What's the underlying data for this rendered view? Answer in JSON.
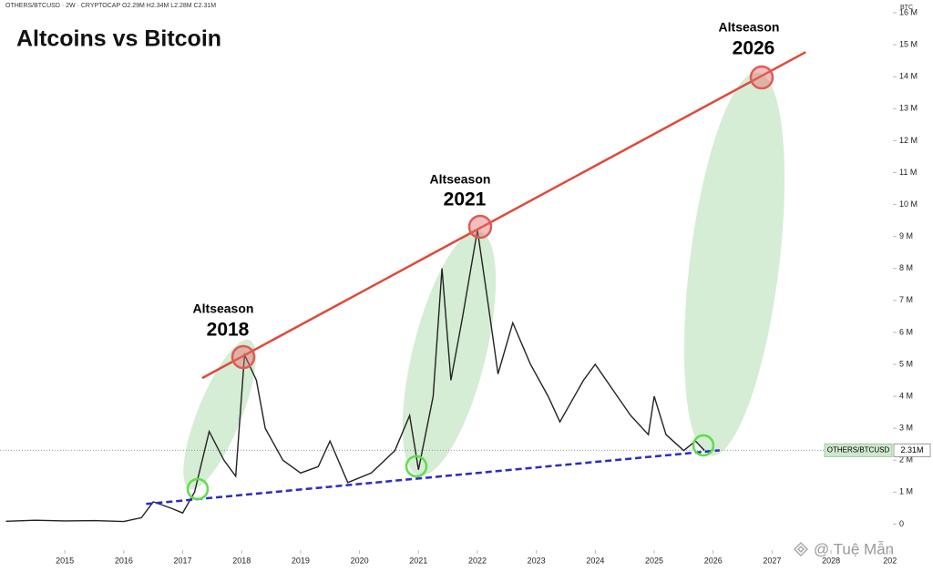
{
  "chart_data": {
    "type": "line",
    "title": "Altcoins vs Bitcoin",
    "header": "OTHERS/BTCUSD · 2W · CRYPTOCAP  O2.29M  H2.34M  L2.28M  C2.31M",
    "y_unit": "BTC",
    "price_label": {
      "name": "OTHERS/BTCUSD",
      "value": 2310000,
      "label": "2.31M"
    },
    "watermark": "@ Tuệ Mẫn",
    "xlim": [
      2013.9,
      2029.05
    ],
    "xticks": [
      2015,
      2016,
      2017,
      2018,
      2019,
      2020,
      2021,
      2022,
      2023,
      2024,
      2025,
      2026,
      2027,
      2028,
      {
        "value": 2029,
        "label": "202"
      }
    ],
    "ylim": [
      -700000,
      16400000
    ],
    "yticks": [
      0,
      {
        "value": 1000000,
        "label": "1 M"
      },
      {
        "value": 2000000,
        "label": "2 M"
      },
      {
        "value": 3000000,
        "label": "3 M"
      },
      {
        "value": 4000000,
        "label": "4 M"
      },
      {
        "value": 5000000,
        "label": "5 M"
      },
      {
        "value": 6000000,
        "label": "6 M"
      },
      {
        "value": 7000000,
        "label": "7 M"
      },
      {
        "value": 8000000,
        "label": "8 M"
      },
      {
        "value": 9000000,
        "label": "9 M"
      },
      {
        "value": 10000000,
        "label": "10 M"
      },
      {
        "value": 11000000,
        "label": "11 M"
      },
      {
        "value": 12000000,
        "label": "12 M"
      },
      {
        "value": 13000000,
        "label": "13 M"
      },
      {
        "value": 14000000,
        "label": "14 M"
      },
      {
        "value": 15000000,
        "label": "15 M"
      },
      {
        "value": 16000000,
        "label": "16 M"
      }
    ],
    "series": [
      {
        "name": "OTHERS/BTCUSD",
        "color": "#222222",
        "x": [
          2014.0,
          2014.5,
          2015.0,
          2015.5,
          2016.0,
          2016.3,
          2016.5,
          2016.8,
          2017.0,
          2017.2,
          2017.45,
          2017.7,
          2017.9,
          2018.05,
          2018.25,
          2018.4,
          2018.7,
          2019.0,
          2019.3,
          2019.5,
          2019.8,
          2020.2,
          2020.6,
          2020.85,
          2021.0,
          2021.25,
          2021.4,
          2021.55,
          2021.75,
          2022.0,
          2022.15,
          2022.35,
          2022.6,
          2022.9,
          2023.2,
          2023.4,
          2023.8,
          2024.0,
          2024.3,
          2024.6,
          2024.9,
          2025.0,
          2025.2,
          2025.5,
          2025.7,
          2025.85
        ],
        "values": [
          90000,
          120000,
          100000,
          110000,
          80000,
          200000,
          700000,
          500000,
          350000,
          1000000,
          2900000,
          2000000,
          1500000,
          5300000,
          4500000,
          3000000,
          2000000,
          1600000,
          1800000,
          2600000,
          1300000,
          1600000,
          2300000,
          3400000,
          1700000,
          4000000,
          8000000,
          4500000,
          6500000,
          9200000,
          7300000,
          4700000,
          6300000,
          5000000,
          4000000,
          3200000,
          4500000,
          5000000,
          4200000,
          3400000,
          2800000,
          4000000,
          2800000,
          2300000,
          2600000,
          2310000
        ]
      }
    ],
    "trendlines": [
      {
        "color": "#e0483a",
        "x": [
          2017.33,
          2027.57
        ],
        "values": [
          4570000,
          14770000
        ]
      },
      {
        "color": "#2b2bc8",
        "x": [
          2016.38,
          2026.11
        ],
        "values": [
          630000,
          2310000
        ]
      }
    ],
    "annotations": [
      {
        "text": "Altseason",
        "year": "2018"
      },
      {
        "text": "Altseason",
        "year": "2021"
      },
      {
        "text": "Altseason",
        "year": "2026"
      }
    ]
  }
}
